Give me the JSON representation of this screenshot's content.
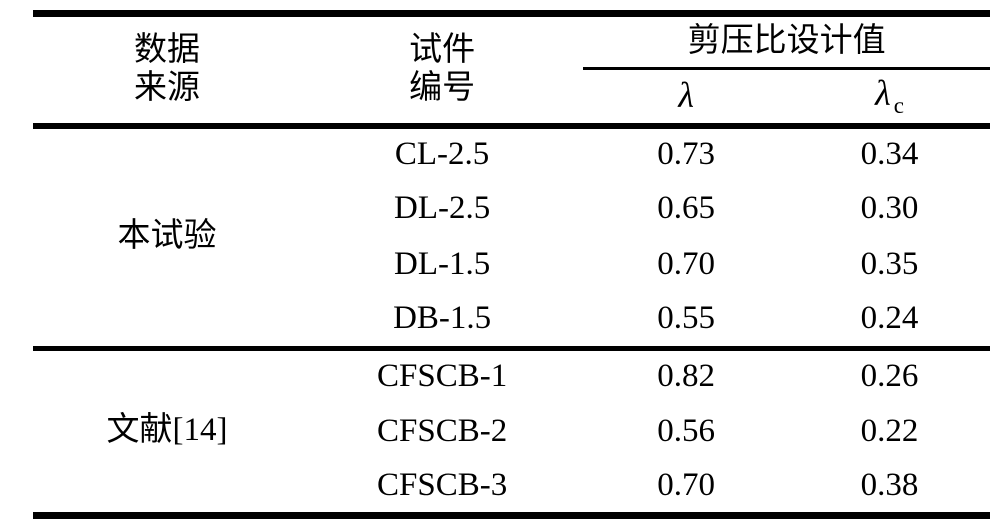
{
  "table": {
    "header": {
      "col_source_line1": "数据",
      "col_source_line2": "来源",
      "col_specimen_line1": "试件",
      "col_specimen_line2": "编号",
      "span_header": "剪压比设计值",
      "sub_col_lambda": "λ",
      "sub_col_lambda_c_base": "λ",
      "sub_col_lambda_c_subscript": "c"
    },
    "groups": [
      {
        "source": "本试验",
        "rows": [
          {
            "specimen": "CL-2.5",
            "lambda": "0.73",
            "lambda_c": "0.34"
          },
          {
            "specimen": "DL-2.5",
            "lambda": "0.65",
            "lambda_c": "0.30"
          },
          {
            "specimen": "DL-1.5",
            "lambda": "0.70",
            "lambda_c": "0.35"
          },
          {
            "specimen": "DB-1.5",
            "lambda": "0.55",
            "lambda_c": "0.24"
          }
        ]
      },
      {
        "source": "文献[14]",
        "rows": [
          {
            "specimen": "CFSCB-1",
            "lambda": "0.82",
            "lambda_c": "0.26"
          },
          {
            "specimen": "CFSCB-2",
            "lambda": "0.56",
            "lambda_c": "0.22"
          },
          {
            "specimen": "CFSCB-3",
            "lambda": "0.70",
            "lambda_c": "0.38"
          }
        ]
      }
    ]
  }
}
